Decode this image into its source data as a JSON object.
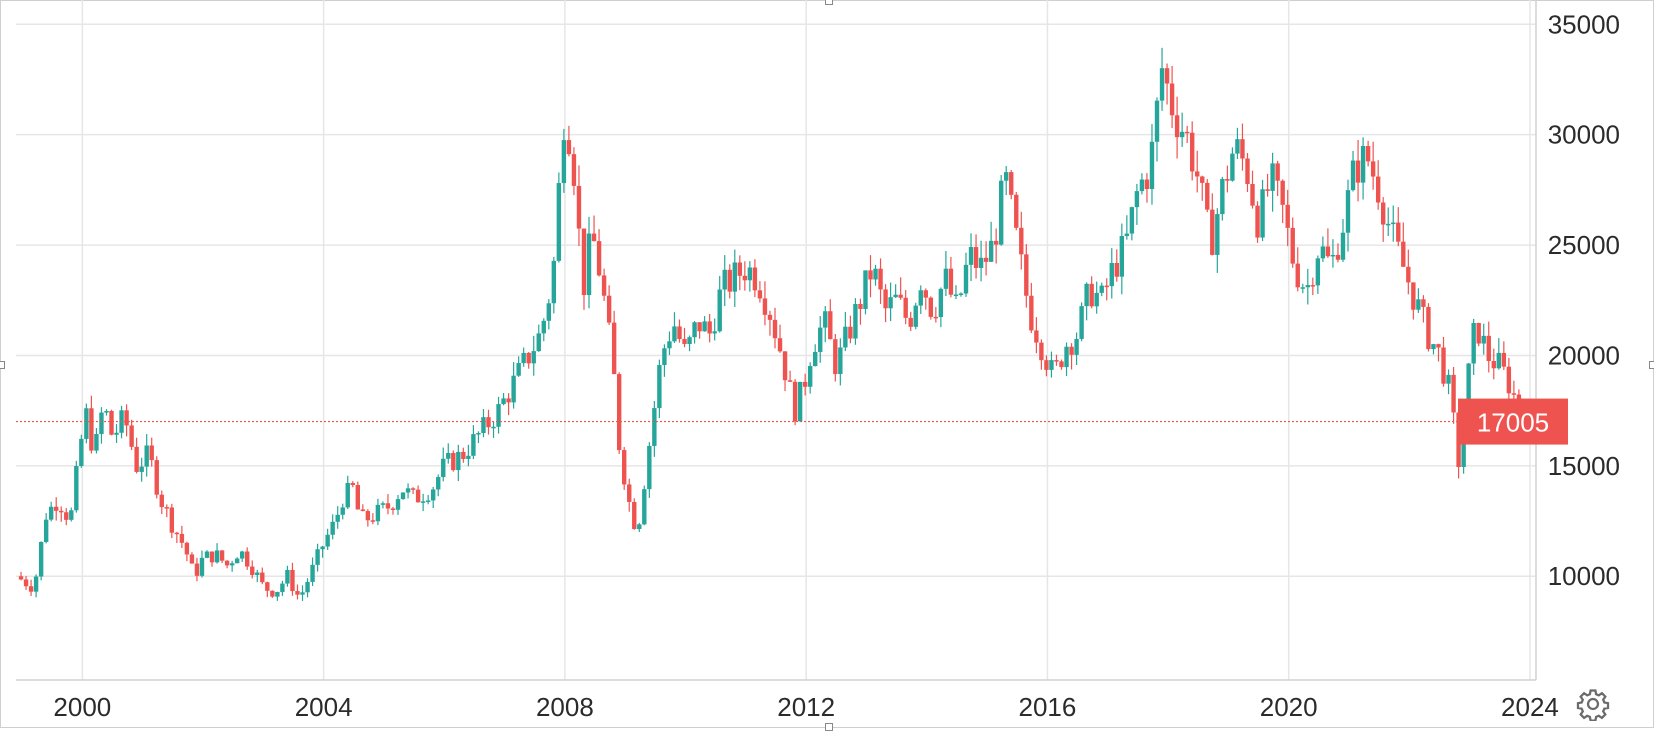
{
  "chart_data": {
    "type": "candlestick",
    "title": "",
    "xlabel": "",
    "ylabel": "",
    "x_ticks": [
      "2000",
      "2004",
      "2008",
      "2012",
      "2016",
      "2020",
      "2024"
    ],
    "y_ticks": [
      10000,
      15000,
      20000,
      25000,
      30000,
      35000
    ],
    "xlim": [
      1998.9,
      2024.1
    ],
    "ylim": [
      5300,
      36100
    ],
    "grid": true,
    "last_price": {
      "label": "17005",
      "value": 17005
    },
    "colors": {
      "up": "#26a69a",
      "down": "#ef5350",
      "grid": "#e6e6e6",
      "price_line": "#ef5350"
    },
    "series": [
      {
        "values": [
          [
            1998.9,
            10000
          ],
          [
            1999.2,
            9500
          ],
          [
            1999.4,
            12800
          ],
          [
            1999.6,
            13500
          ],
          [
            1999.8,
            12500
          ],
          [
            1999.9,
            14500
          ],
          [
            2000.05,
            17500
          ],
          [
            2000.2,
            15500
          ],
          [
            2000.35,
            17800
          ],
          [
            2000.5,
            16300
          ],
          [
            2000.7,
            17200
          ],
          [
            2000.9,
            15000
          ],
          [
            2001.1,
            15500
          ],
          [
            2001.3,
            13500
          ],
          [
            2001.5,
            12300
          ],
          [
            2001.7,
            11300
          ],
          [
            2001.85,
            10000
          ],
          [
            2002.0,
            10800
          ],
          [
            2002.2,
            11000
          ],
          [
            2002.4,
            10500
          ],
          [
            2002.6,
            11200
          ],
          [
            2002.8,
            10500
          ],
          [
            2003.0,
            9500
          ],
          [
            2003.2,
            9300
          ],
          [
            2003.4,
            10000
          ],
          [
            2003.6,
            9000
          ],
          [
            2003.8,
            10200
          ],
          [
            2004.0,
            11500
          ],
          [
            2004.2,
            12500
          ],
          [
            2004.3,
            13500
          ],
          [
            2004.5,
            14000
          ],
          [
            2004.6,
            12500
          ],
          [
            2004.8,
            12700
          ],
          [
            2005.1,
            13200
          ],
          [
            2005.3,
            14000
          ],
          [
            2005.5,
            13500
          ],
          [
            2005.8,
            14000
          ],
          [
            2006.0,
            15000
          ],
          [
            2006.3,
            15500
          ],
          [
            2006.6,
            16500
          ],
          [
            2006.9,
            17500
          ],
          [
            2007.2,
            19000
          ],
          [
            2007.4,
            20000
          ],
          [
            2007.6,
            21000
          ],
          [
            2007.8,
            23500
          ],
          [
            2008.0,
            31500
          ],
          [
            2008.15,
            28500
          ],
          [
            2008.3,
            23000
          ],
          [
            2008.45,
            25500
          ],
          [
            2008.6,
            23500
          ],
          [
            2008.8,
            19500
          ],
          [
            2008.9,
            16000
          ],
          [
            2009.05,
            13500
          ],
          [
            2009.2,
            12000
          ],
          [
            2009.35,
            15000
          ],
          [
            2009.6,
            20000
          ],
          [
            2009.8,
            21500
          ],
          [
            2010.0,
            20000
          ],
          [
            2010.2,
            21500
          ],
          [
            2010.4,
            21000
          ],
          [
            2010.6,
            23000
          ],
          [
            2010.8,
            23500
          ],
          [
            2011.0,
            24000
          ],
          [
            2011.2,
            23500
          ],
          [
            2011.4,
            22000
          ],
          [
            2011.6,
            20000
          ],
          [
            2011.8,
            17500
          ],
          [
            2011.95,
            18500
          ],
          [
            2012.1,
            20500
          ],
          [
            2012.3,
            21500
          ],
          [
            2012.5,
            19500
          ],
          [
            2012.7,
            21000
          ],
          [
            2012.9,
            22500
          ],
          [
            2013.1,
            24000
          ],
          [
            2013.3,
            22000
          ],
          [
            2013.5,
            22500
          ],
          [
            2013.7,
            21500
          ],
          [
            2013.9,
            23500
          ],
          [
            2014.1,
            22000
          ],
          [
            2014.3,
            23500
          ],
          [
            2014.5,
            22000
          ],
          [
            2014.7,
            24500
          ],
          [
            2014.9,
            24000
          ],
          [
            2015.1,
            25000
          ],
          [
            2015.3,
            28000
          ],
          [
            2015.5,
            25000
          ],
          [
            2015.7,
            22000
          ],
          [
            2015.9,
            20500
          ],
          [
            2016.1,
            19000
          ],
          [
            2016.3,
            20500
          ],
          [
            2016.5,
            21000
          ],
          [
            2016.7,
            23000
          ],
          [
            2016.9,
            22500
          ],
          [
            2017.1,
            24000
          ],
          [
            2017.3,
            25000
          ],
          [
            2017.5,
            27500
          ],
          [
            2017.7,
            28500
          ],
          [
            2017.9,
            33000
          ],
          [
            2018.1,
            31000
          ],
          [
            2018.3,
            30000
          ],
          [
            2018.5,
            28000
          ],
          [
            2018.7,
            25000
          ],
          [
            2018.9,
            27500
          ],
          [
            2019.1,
            29500
          ],
          [
            2019.3,
            28500
          ],
          [
            2019.5,
            26000
          ],
          [
            2019.7,
            28000
          ],
          [
            2019.9,
            26500
          ],
          [
            2020.1,
            24000
          ],
          [
            2020.3,
            23000
          ],
          [
            2020.5,
            25000
          ],
          [
            2020.7,
            24000
          ],
          [
            2020.9,
            26000
          ],
          [
            2021.1,
            28500
          ],
          [
            2021.3,
            29000
          ],
          [
            2021.5,
            27500
          ],
          [
            2021.7,
            25500
          ],
          [
            2021.9,
            24000
          ],
          [
            2022.1,
            22500
          ],
          [
            2022.3,
            21000
          ],
          [
            2022.5,
            20000
          ],
          [
            2022.7,
            18000
          ],
          [
            2022.8,
            14800
          ],
          [
            2022.95,
            18500
          ],
          [
            2023.1,
            21500
          ],
          [
            2023.3,
            20000
          ],
          [
            2023.5,
            19500
          ],
          [
            2023.7,
            18500
          ],
          [
            2023.85,
            17005
          ]
        ]
      }
    ]
  },
  "ui": {
    "settings_icon": "gear-icon"
  }
}
